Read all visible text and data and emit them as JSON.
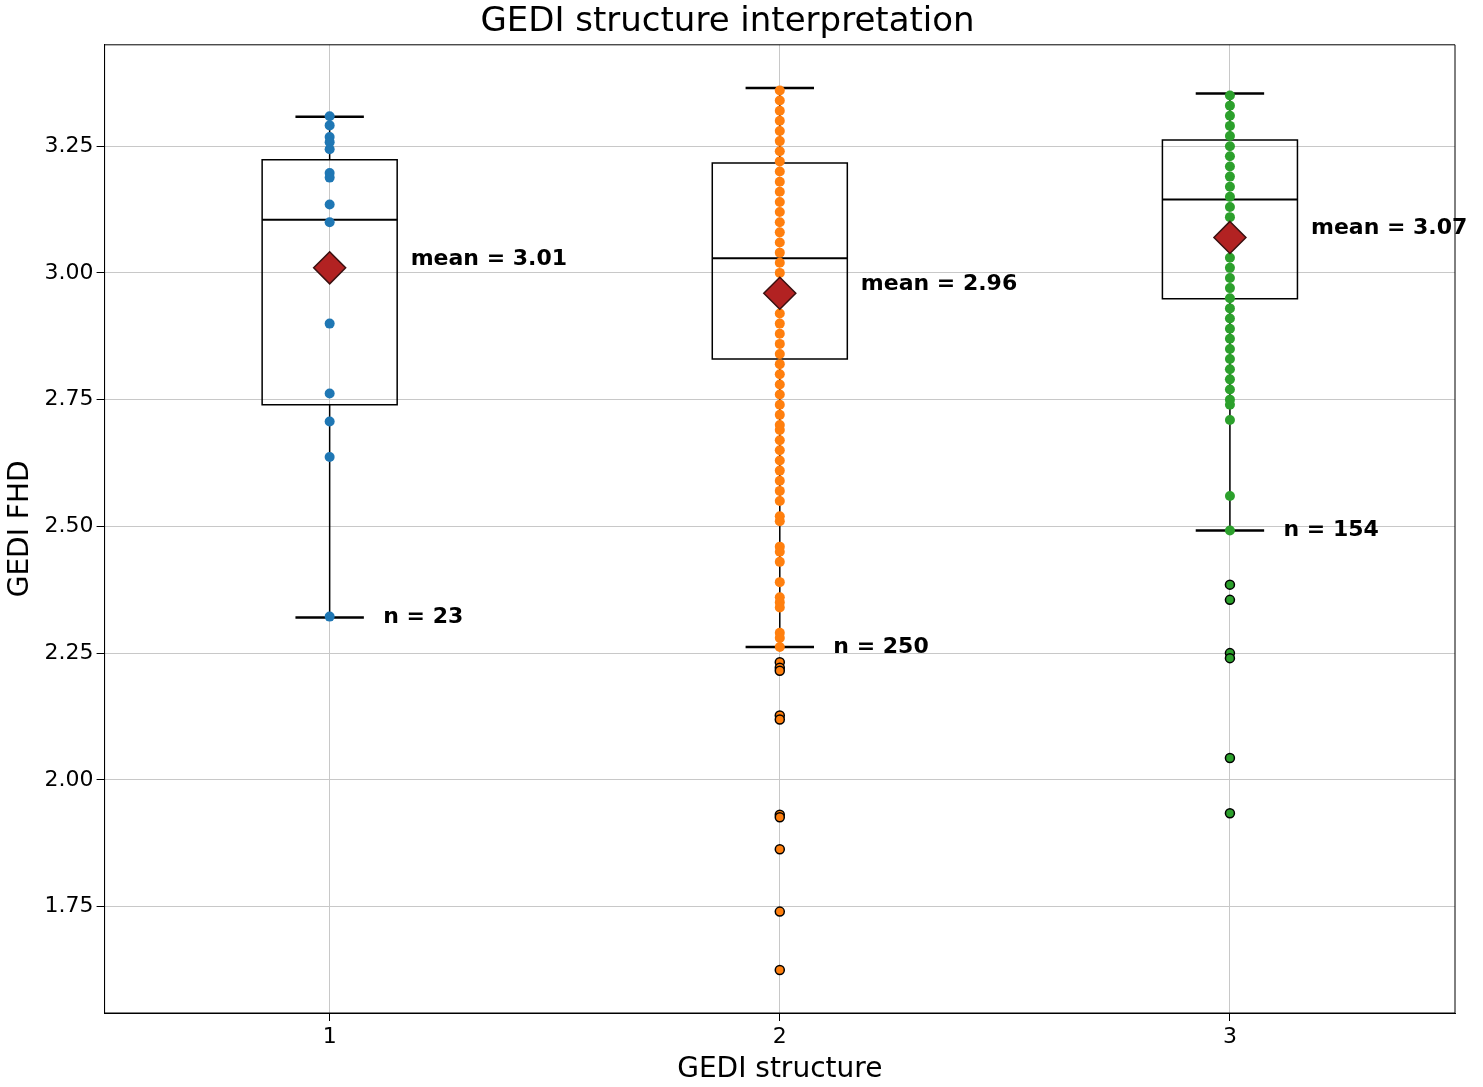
{
  "chart_data": {
    "type": "box",
    "title": "GEDI structure interpretation",
    "xlabel": "GEDI structure",
    "ylabel": "GEDI FHD",
    "categories": [
      "1",
      "2",
      "3"
    ],
    "boxes": [
      {
        "low": 2.32,
        "q1": 2.74,
        "median": 3.105,
        "q3": 3.223,
        "high": 3.308,
        "mean": 3.01
      },
      {
        "low": 2.262,
        "q1": 2.83,
        "median": 3.029,
        "q3": 3.217,
        "high": 3.365,
        "mean": 2.96,
        "outliers": [
          2.232,
          2.221,
          2.215,
          2.127,
          2.119,
          1.931,
          1.926,
          1.863,
          1.74,
          1.625
        ]
      },
      {
        "low": 2.492,
        "q1": 2.949,
        "median": 3.145,
        "q3": 3.262,
        "high": 3.354,
        "mean": 3.07,
        "outliers": [
          2.385,
          2.355,
          2.25,
          2.24,
          2.043,
          1.934
        ]
      }
    ],
    "series": [
      {
        "type": "scatter",
        "color": "#1f77b4",
        "x": [
          "1",
          "1",
          "1",
          "1",
          "1",
          "1",
          "1",
          "1",
          "1",
          "1",
          "1",
          "1",
          "1",
          "1",
          "1",
          "1",
          "1",
          "1"
        ],
        "values": [
          3.309,
          3.291,
          3.268,
          3.258,
          3.244,
          null,
          3.197,
          3.188,
          3.135,
          null,
          3.1,
          2.9,
          2.762,
          null,
          null,
          2.707,
          2.637,
          2.322
        ]
      },
      {
        "type": "scatter",
        "color": "#ff7f0e",
        "x": [
          "2",
          "2",
          "2",
          "2",
          "2",
          "2",
          "2",
          "2",
          "2",
          "2",
          "2",
          "2",
          "2",
          "2",
          "2",
          "2",
          "2",
          "2",
          "2",
          "2",
          "2",
          "2",
          "2",
          "2",
          "2",
          "2",
          "2",
          "2",
          "2",
          "2",
          "2",
          "2",
          "2",
          "2",
          "2",
          "2",
          "2",
          "2",
          "2",
          "2",
          "2",
          "2",
          "2",
          "2",
          "2",
          "2",
          "2",
          "2",
          "2",
          "2",
          "2"
        ],
        "values": [
          3.36,
          3.34,
          3.32,
          3.3,
          3.28,
          3.26,
          3.24,
          3.22,
          3.2,
          3.18,
          3.16,
          3.14,
          3.12,
          3.1,
          3.08,
          3.06,
          3.04,
          3.02,
          3.0,
          2.92,
          2.9,
          2.88,
          2.86,
          2.84,
          2.82,
          2.8,
          2.78,
          2.76,
          2.74,
          2.72,
          2.69,
          2.67,
          2.65,
          2.63,
          2.61,
          2.59,
          2.57,
          2.55,
          2.52,
          2.51,
          2.46,
          2.45,
          2.43,
          2.39,
          2.36,
          2.35,
          2.34,
          2.29,
          2.28,
          2.262,
          2.7
        ]
      },
      {
        "type": "scatter",
        "color": "#2ca02c",
        "x": [
          "3",
          "3",
          "3",
          "3",
          "3",
          "3",
          "3",
          "3",
          "3",
          "3",
          "3",
          "3",
          "3",
          "3",
          "3",
          "3",
          "3",
          "3",
          "3",
          "3",
          "3",
          "3",
          "3",
          "3",
          "3",
          "3",
          "3",
          "3",
          "3",
          "3",
          "3",
          "3"
        ],
        "values": [
          3.35,
          3.33,
          3.31,
          3.29,
          3.27,
          3.25,
          3.23,
          3.21,
          3.19,
          3.17,
          3.15,
          3.13,
          3.11,
          3.03,
          3.01,
          2.99,
          2.97,
          2.95,
          2.93,
          2.91,
          2.89,
          2.87,
          2.85,
          2.83,
          2.81,
          2.79,
          2.77,
          2.75,
          2.71,
          2.56,
          2.492,
          2.74
        ]
      }
    ],
    "ylim": [
      1.54,
      3.45
    ],
    "yticks": [
      1.75,
      {
        "value": 2,
        "label": "2.00"
      },
      2.25,
      {
        "value": 2.5,
        "label": "2.50"
      },
      2.75,
      {
        "value": 3,
        "label": "3.00"
      },
      3.25
    ],
    "grid": true,
    "legend": false,
    "annotations": [
      "mean = 3.01",
      "mean = 2.96",
      "mean = 3.07",
      "n = 23",
      "n = 250",
      "n = 154"
    ]
  }
}
